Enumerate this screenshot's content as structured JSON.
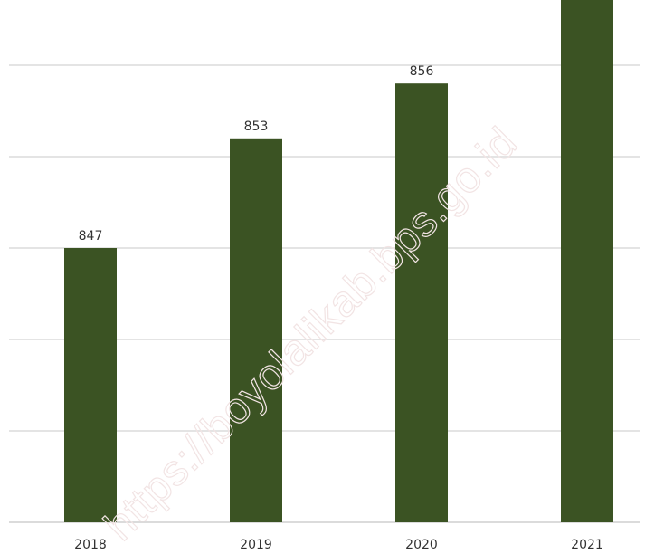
{
  "watermark": "https://boyolalikab.bps.go.id",
  "chart_data": {
    "type": "bar",
    "title": "",
    "xlabel": "",
    "ylabel": "",
    "categories": [
      "2018",
      "2019",
      "2020",
      "2021"
    ],
    "values": [
      847,
      853,
      856,
      862
    ],
    "ylim": [
      832,
      865
    ],
    "grid": true,
    "legend": "none",
    "bar_color": "#3b5323",
    "data_labels": true
  }
}
